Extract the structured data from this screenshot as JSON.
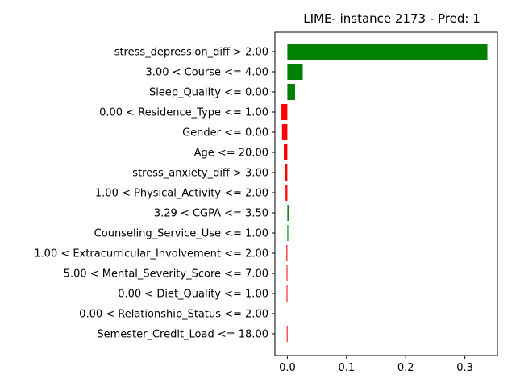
{
  "chart_data": {
    "type": "bar",
    "orientation": "horizontal",
    "title": "LIME- instance 2173 - Pred: 1",
    "xlabel": "",
    "ylabel": "",
    "xlim": [
      -0.021,
      0.355
    ],
    "xticks": [
      0.0,
      0.1,
      0.2,
      0.3
    ],
    "xtick_labels": [
      "0.0",
      "0.1",
      "0.2",
      "0.3"
    ],
    "grid": false,
    "positive_color": "#008000",
    "negative_color": "#ff0000",
    "categories": [
      "stress_depression_diff > 2.00",
      "3.00 < Course <= 4.00",
      "Sleep_Quality <= 0.00",
      "0.00 < Residence_Type <= 1.00",
      "Gender <= 0.00",
      "Age <= 20.00",
      "stress_anxiety_diff > 3.00",
      "1.00 < Physical_Activity <= 2.00",
      "3.29 < CGPA <= 3.50",
      "Counseling_Service_Use <= 1.00",
      "1.00 < Extracurricular_Involvement <= 2.00",
      "5.00 < Mental_Severity_Score <= 7.00",
      "0.00 < Diet_Quality <= 1.00",
      "0.00 < Relationship_Status <= 2.00",
      "Semester_Credit_Load <= 18.00"
    ],
    "values": [
      0.338,
      0.026,
      0.013,
      -0.01,
      -0.009,
      -0.006,
      -0.004,
      -0.003,
      0.002,
      0.0015,
      -0.0015,
      -0.0012,
      -0.0012,
      0.0,
      -0.001
    ]
  }
}
